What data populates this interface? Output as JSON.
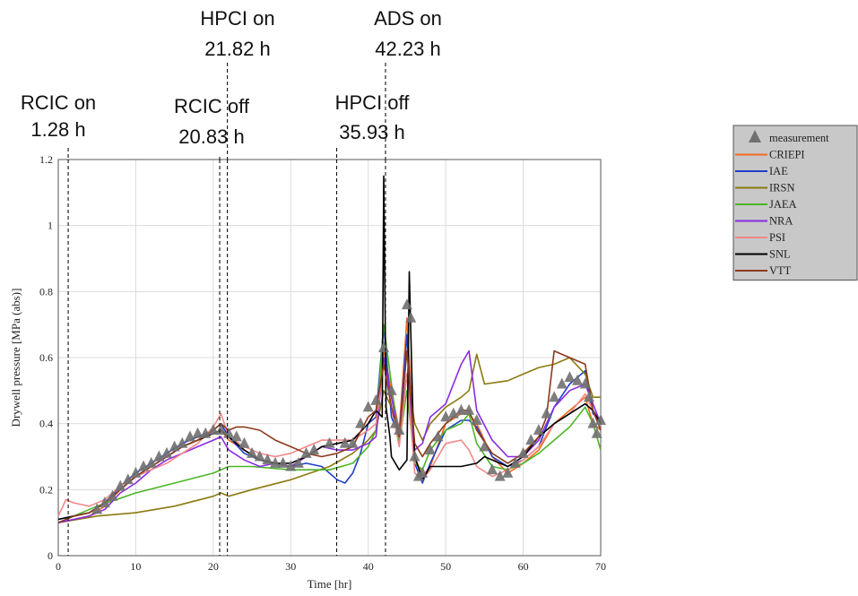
{
  "chart_data": {
    "type": "line",
    "title": "",
    "xlabel": "Time [hr]",
    "ylabel": "Drywell pressure [MPa (abs)]",
    "xlim": [
      0,
      70
    ],
    "ylim": [
      0,
      1.2
    ],
    "xticks": [
      "0",
      "10",
      "20",
      "30",
      "40",
      "50",
      "60",
      "70"
    ],
    "yticks": [
      "0",
      "0.2",
      "0.4",
      "0.6",
      "0.8",
      "1",
      "1.2"
    ],
    "grid": true,
    "legend_position": "right",
    "events": [
      {
        "time": 1.28,
        "line1": "RCIC on",
        "line2": "1.28 h"
      },
      {
        "time": 20.83,
        "line1": "RCIC off",
        "line2": "20.83 h"
      },
      {
        "time": 21.82,
        "line1": "HPCI on",
        "line2": "21.82 h"
      },
      {
        "time": 35.93,
        "line1": "HPCI off",
        "line2": "35.93 h"
      },
      {
        "time": 42.23,
        "line1": "ADS on",
        "line2": "42.23 h"
      }
    ],
    "measurement": {
      "name": "measurement",
      "color": "#707070",
      "points": [
        [
          5,
          0.14
        ],
        [
          6,
          0.16
        ],
        [
          7,
          0.18
        ],
        [
          8,
          0.21
        ],
        [
          9,
          0.23
        ],
        [
          10,
          0.25
        ],
        [
          11,
          0.27
        ],
        [
          12,
          0.28
        ],
        [
          13,
          0.3
        ],
        [
          14,
          0.31
        ],
        [
          15,
          0.33
        ],
        [
          16,
          0.34
        ],
        [
          17,
          0.36
        ],
        [
          18,
          0.37
        ],
        [
          19,
          0.37
        ],
        [
          20,
          0.38
        ],
        [
          21,
          0.38
        ],
        [
          22,
          0.37
        ],
        [
          23,
          0.36
        ],
        [
          24,
          0.34
        ],
        [
          25,
          0.31
        ],
        [
          26,
          0.3
        ],
        [
          27,
          0.29
        ],
        [
          28,
          0.28
        ],
        [
          29,
          0.28
        ],
        [
          30,
          0.27
        ],
        [
          31,
          0.28
        ],
        [
          32,
          0.31
        ],
        [
          33,
          0.32
        ],
        [
          35,
          0.34
        ],
        [
          37,
          0.34
        ],
        [
          38,
          0.34
        ],
        [
          39,
          0.4
        ],
        [
          40,
          0.45
        ],
        [
          41,
          0.47
        ],
        [
          42,
          0.63
        ],
        [
          43,
          0.5
        ],
        [
          43.5,
          0.4
        ],
        [
          44,
          0.38
        ],
        [
          45,
          0.76
        ],
        [
          45.5,
          0.72
        ],
        [
          46,
          0.3
        ],
        [
          46.5,
          0.24
        ],
        [
          47,
          0.25
        ],
        [
          48,
          0.32
        ],
        [
          49,
          0.36
        ],
        [
          50,
          0.42
        ],
        [
          51,
          0.43
        ],
        [
          52,
          0.44
        ],
        [
          53,
          0.44
        ],
        [
          54,
          0.41
        ],
        [
          55,
          0.33
        ],
        [
          56,
          0.26
        ],
        [
          57,
          0.24
        ],
        [
          58,
          0.25
        ],
        [
          59,
          0.28
        ],
        [
          60,
          0.31
        ],
        [
          61,
          0.35
        ],
        [
          62,
          0.38
        ],
        [
          63,
          0.43
        ],
        [
          64,
          0.48
        ],
        [
          65,
          0.52
        ],
        [
          66,
          0.54
        ],
        [
          67,
          0.53
        ],
        [
          68,
          0.52
        ],
        [
          68.5,
          0.48
        ],
        [
          69,
          0.4
        ],
        [
          69.5,
          0.37
        ],
        [
          70,
          0.41
        ]
      ]
    },
    "series": [
      {
        "name": "CRIEPI",
        "color": "#f26a1f",
        "x": [
          0,
          2,
          4,
          6,
          8,
          10,
          12,
          14,
          16,
          18,
          20,
          21,
          22,
          24,
          26,
          28,
          30,
          32,
          34,
          36,
          38,
          40,
          41,
          42,
          43,
          44,
          45,
          46,
          47,
          48,
          50,
          52,
          53,
          54,
          56,
          58,
          60,
          62,
          64,
          66,
          68,
          69,
          70
        ],
        "y": [
          0.1,
          0.11,
          0.12,
          0.15,
          0.2,
          0.24,
          0.27,
          0.3,
          0.33,
          0.35,
          0.37,
          0.38,
          0.35,
          0.32,
          0.29,
          0.28,
          0.27,
          0.3,
          0.33,
          0.34,
          0.35,
          0.4,
          0.44,
          0.62,
          0.5,
          0.38,
          0.72,
          0.3,
          0.24,
          0.27,
          0.4,
          0.43,
          0.43,
          0.4,
          0.3,
          0.25,
          0.28,
          0.32,
          0.4,
          0.44,
          0.48,
          0.4,
          0.38
        ]
      },
      {
        "name": "IAE",
        "color": "#1f3fc8",
        "x": [
          0,
          2,
          4,
          6,
          8,
          10,
          12,
          14,
          16,
          18,
          20,
          21,
          22,
          24,
          26,
          28,
          30,
          32,
          34,
          36,
          37,
          38,
          39,
          40,
          41,
          42,
          43,
          44,
          45,
          46,
          47,
          48,
          50,
          52,
          53,
          54,
          56,
          58,
          60,
          62,
          64,
          66,
          68,
          69,
          70
        ],
        "y": [
          0.11,
          0.12,
          0.13,
          0.16,
          0.21,
          0.25,
          0.28,
          0.31,
          0.34,
          0.36,
          0.38,
          0.4,
          0.36,
          0.31,
          0.29,
          0.28,
          0.27,
          0.28,
          0.27,
          0.23,
          0.22,
          0.25,
          0.31,
          0.4,
          0.42,
          0.7,
          0.42,
          0.36,
          0.67,
          0.28,
          0.22,
          0.28,
          0.38,
          0.41,
          0.41,
          0.39,
          0.3,
          0.27,
          0.29,
          0.33,
          0.45,
          0.52,
          0.56,
          0.43,
          0.41
        ]
      },
      {
        "name": "IRSN",
        "color": "#8a7a10",
        "x": [
          0,
          5,
          10,
          15,
          20,
          21,
          22,
          25,
          30,
          35,
          38,
          40,
          41,
          42,
          43,
          44,
          45,
          46,
          47,
          48,
          50,
          52,
          53,
          54,
          55,
          58,
          60,
          62,
          64,
          66,
          68,
          69,
          70
        ],
        "y": [
          0.1,
          0.12,
          0.13,
          0.15,
          0.18,
          0.19,
          0.18,
          0.2,
          0.23,
          0.27,
          0.31,
          0.35,
          0.38,
          0.5,
          0.45,
          0.36,
          0.55,
          0.4,
          0.35,
          0.4,
          0.45,
          0.48,
          0.5,
          0.61,
          0.52,
          0.53,
          0.55,
          0.57,
          0.58,
          0.6,
          0.55,
          0.48,
          0.48
        ]
      },
      {
        "name": "JAEA",
        "color": "#4cb525",
        "x": [
          0,
          5,
          10,
          15,
          20,
          22,
          25,
          30,
          35,
          38,
          40,
          41,
          42,
          43,
          44,
          45,
          46,
          47,
          48,
          50,
          52,
          53,
          54,
          56,
          58,
          60,
          62,
          64,
          66,
          68,
          69,
          70
        ],
        "y": [
          0.1,
          0.15,
          0.19,
          0.22,
          0.25,
          0.27,
          0.27,
          0.26,
          0.26,
          0.28,
          0.33,
          0.38,
          0.7,
          0.52,
          0.34,
          0.5,
          0.28,
          0.26,
          0.32,
          0.38,
          0.4,
          0.43,
          0.34,
          0.27,
          0.26,
          0.28,
          0.31,
          0.35,
          0.39,
          0.45,
          0.4,
          0.32
        ]
      },
      {
        "name": "NRA",
        "color": "#8a2be2",
        "x": [
          0,
          2,
          4,
          6,
          8,
          10,
          12,
          14,
          16,
          18,
          20,
          21,
          22,
          24,
          26,
          28,
          30,
          32,
          34,
          36,
          38,
          40,
          41,
          42,
          43,
          44,
          45,
          46,
          47,
          48,
          50,
          52,
          53,
          54,
          56,
          58,
          60,
          62,
          64,
          66,
          68,
          69,
          70
        ],
        "y": [
          0.1,
          0.11,
          0.12,
          0.14,
          0.19,
          0.22,
          0.26,
          0.29,
          0.31,
          0.33,
          0.35,
          0.36,
          0.32,
          0.29,
          0.27,
          0.28,
          0.27,
          0.3,
          0.33,
          0.32,
          0.32,
          0.34,
          0.36,
          0.6,
          0.48,
          0.36,
          0.55,
          0.32,
          0.34,
          0.42,
          0.46,
          0.58,
          0.62,
          0.44,
          0.35,
          0.3,
          0.3,
          0.35,
          0.45,
          0.5,
          0.52,
          0.46,
          0.4
        ]
      },
      {
        "name": "PSI",
        "color": "#f58888",
        "x": [
          0,
          1,
          2,
          4,
          6,
          8,
          10,
          12,
          14,
          16,
          18,
          20,
          21,
          22,
          24,
          26,
          28,
          30,
          32,
          34,
          36,
          38,
          40,
          41,
          42,
          43,
          44,
          45,
          46,
          47,
          48,
          50,
          52,
          53,
          54,
          56,
          58,
          60,
          62,
          64,
          66,
          68,
          69,
          70
        ],
        "y": [
          0.12,
          0.17,
          0.16,
          0.15,
          0.17,
          0.21,
          0.24,
          0.26,
          0.28,
          0.31,
          0.34,
          0.39,
          0.43,
          0.36,
          0.33,
          0.31,
          0.3,
          0.31,
          0.33,
          0.35,
          0.35,
          0.35,
          0.38,
          0.4,
          0.58,
          0.45,
          0.33,
          0.55,
          0.25,
          0.23,
          0.26,
          0.34,
          0.35,
          0.32,
          0.27,
          0.24,
          0.26,
          0.29,
          0.33,
          0.4,
          0.43,
          0.49,
          0.44,
          0.38
        ]
      },
      {
        "name": "SNL",
        "color": "#000000",
        "x": [
          0,
          2,
          4,
          6,
          8,
          10,
          12,
          14,
          16,
          18,
          20,
          21,
          22,
          24,
          26,
          28,
          30,
          32,
          34,
          36,
          38,
          40,
          41,
          41.8,
          42,
          42.3,
          42.8,
          43,
          44,
          45,
          45.3,
          45.8,
          46,
          47,
          48,
          50,
          52,
          54,
          55,
          57,
          58,
          60,
          62,
          64,
          66,
          68,
          69,
          70
        ],
        "y": [
          0.11,
          0.12,
          0.13,
          0.16,
          0.2,
          0.24,
          0.27,
          0.3,
          0.33,
          0.35,
          0.37,
          0.38,
          0.36,
          0.32,
          0.29,
          0.28,
          0.28,
          0.3,
          0.33,
          0.34,
          0.35,
          0.4,
          0.44,
          0.42,
          1.15,
          0.45,
          0.36,
          0.3,
          0.26,
          0.29,
          0.86,
          0.4,
          0.3,
          0.23,
          0.27,
          0.27,
          0.27,
          0.28,
          0.3,
          0.28,
          0.27,
          0.3,
          0.36,
          0.4,
          0.43,
          0.46,
          0.44,
          0.4
        ]
      },
      {
        "name": "VTT",
        "color": "#8b3a1a",
        "x": [
          0,
          2,
          4,
          6,
          8,
          10,
          12,
          14,
          16,
          18,
          20,
          21,
          22,
          23,
          24,
          26,
          28,
          30,
          32,
          34,
          36,
          38,
          40,
          41,
          42,
          43,
          44,
          45,
          46,
          47,
          48,
          50,
          52,
          53,
          54,
          56,
          58,
          60,
          62,
          63,
          64,
          66,
          68,
          69,
          70
        ],
        "y": [
          0.1,
          0.12,
          0.13,
          0.16,
          0.2,
          0.24,
          0.27,
          0.3,
          0.33,
          0.35,
          0.38,
          0.4,
          0.38,
          0.39,
          0.39,
          0.38,
          0.35,
          0.33,
          0.31,
          0.3,
          0.31,
          0.33,
          0.42,
          0.44,
          0.58,
          0.45,
          0.36,
          0.62,
          0.34,
          0.3,
          0.34,
          0.4,
          0.44,
          0.44,
          0.38,
          0.31,
          0.28,
          0.31,
          0.36,
          0.42,
          0.62,
          0.6,
          0.58,
          0.44,
          0.38
        ]
      }
    ]
  }
}
